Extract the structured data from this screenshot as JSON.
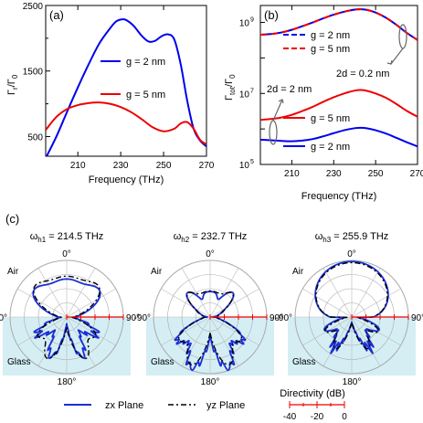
{
  "panels": {
    "a": "(a)",
    "b": "(b)",
    "c": "(c)"
  },
  "chart_data": [
    {
      "type": "line",
      "panel": "(a)",
      "xlabel": "Frequency (THz)",
      "ylabel": "Γr/Γ0",
      "ylabel_main": "Γ",
      "ylabel_sub1": "r",
      "ylabel_div": "/Γ",
      "ylabel_sub2": "0",
      "xlim": [
        195,
        270
      ],
      "ylim": [
        200,
        2500
      ],
      "xticks": [
        210,
        230,
        250,
        270
      ],
      "yticks": [
        500,
        1500,
        2500
      ],
      "ytick_labels": [
        "500",
        "1500",
        "2500"
      ],
      "xtick_labels": [
        "210",
        "230",
        "250",
        "270"
      ],
      "grid": false,
      "series": [
        {
          "name": "g = 2 nm",
          "color": "#0000ee",
          "x": [
            195,
            200,
            205,
            210,
            215,
            220,
            225,
            228,
            231,
            233,
            236,
            240,
            243,
            246,
            249,
            252,
            255,
            258,
            261,
            264,
            267,
            270
          ],
          "y": [
            170,
            500,
            880,
            1250,
            1600,
            1920,
            2150,
            2260,
            2290,
            2270,
            2190,
            2030,
            1950,
            1960,
            2030,
            2060,
            1980,
            1600,
            1050,
            620,
            440,
            350
          ]
        },
        {
          "name": "g = 5 nm",
          "color": "#ee0000",
          "x": [
            195,
            200,
            205,
            210,
            215,
            220,
            225,
            230,
            235,
            240,
            245,
            250,
            255,
            258,
            261,
            264,
            267,
            270
          ],
          "y": [
            600,
            800,
            920,
            980,
            1010,
            1020,
            1000,
            950,
            870,
            760,
            640,
            580,
            620,
            700,
            720,
            620,
            450,
            380
          ]
        }
      ]
    },
    {
      "type": "line",
      "panel": "(b)",
      "xlabel": "Frequency (THz)",
      "ylabel": "Γtot/Γ0",
      "ylabel_main": "Γ",
      "ylabel_sub1": "tot",
      "ylabel_div": "/Γ",
      "ylabel_sub2": "0",
      "yscale": "log",
      "xlim": [
        195,
        270
      ],
      "ylim": [
        100000,
        3000000000
      ],
      "xticks": [
        210,
        230,
        250,
        270
      ],
      "xtick_labels": [
        "210",
        "230",
        "250",
        "270"
      ],
      "yticks": [
        100000,
        10000000,
        1000000000
      ],
      "ytick_base": "10",
      "ytick_exponents": [
        "5",
        "7",
        "9"
      ],
      "grid": false,
      "annotations": [
        "2d = 0.2 nm",
        "2d = 2 nm"
      ],
      "series": [
        {
          "name": "g = 2 nm",
          "color": "#0000ee",
          "style": "solid",
          "x": [
            195,
            200,
            205,
            210,
            215,
            220,
            225,
            230,
            235,
            240,
            243,
            246,
            250,
            255,
            260,
            265,
            270
          ],
          "y": [
            450000000,
            470000000,
            520000000,
            620000000,
            780000000,
            1000000000,
            1300000000,
            1650000000,
            2000000000,
            2300000000,
            2350000000,
            2250000000,
            1900000000,
            1350000000,
            850000000,
            500000000,
            320000000
          ]
        },
        {
          "name": "g = 5 nm",
          "color": "#ee0000",
          "style": "dashed",
          "x": [
            195,
            200,
            205,
            210,
            215,
            220,
            225,
            230,
            235,
            240,
            243,
            246,
            250,
            255,
            260,
            265,
            270
          ],
          "y": [
            450000000,
            470000000,
            520000000,
            620000000,
            780000000,
            1000000000,
            1300000000,
            1650000000,
            2000000000,
            2300000000,
            2350000000,
            2250000000,
            1900000000,
            1350000000,
            850000000,
            500000000,
            320000000
          ]
        },
        {
          "name": "g = 2 nm",
          "color": "#0000ee",
          "style": "solid",
          "x": [
            195,
            200,
            205,
            210,
            215,
            220,
            225,
            230,
            235,
            240,
            243,
            246,
            250,
            255,
            260,
            265,
            270
          ],
          "y": [
            500000,
            480000,
            460000,
            450000,
            470000,
            520000,
            620000,
            760000,
            920000,
            1050000,
            1080000,
            1040000,
            920000,
            740000,
            560000,
            420000,
            320000
          ]
        },
        {
          "name": "g = 5 nm",
          "color": "#ee0000",
          "style": "solid",
          "x": [
            195,
            200,
            205,
            210,
            215,
            220,
            225,
            230,
            235,
            240,
            243,
            246,
            250,
            255,
            260,
            265,
            270
          ],
          "y": [
            1800000,
            1900000,
            2100000,
            2500000,
            3200000,
            4200000,
            5800000,
            7800000,
            10000000,
            12000000,
            12500000,
            11800000,
            10000000,
            7500000,
            5000000,
            3200000,
            2200000
          ]
        }
      ]
    },
    {
      "type": "polar",
      "panel": "(c)",
      "charts": [
        {
          "title_main": "ω",
          "title_sub": "h1",
          "title_rest": " = 214.5 THz",
          "shape": "h1"
        },
        {
          "title_main": "ω",
          "title_sub": "h2",
          "title_rest": " = 232.7 THz",
          "shape": "h2"
        },
        {
          "title_main": "ω",
          "title_sub": "h3",
          "title_rest": " = 255.9 THz",
          "shape": "h3"
        }
      ],
      "angle_labels": {
        "top": "0°",
        "left": "-90°",
        "right": "90°",
        "bottom": "180°"
      },
      "region_labels": {
        "upper": "Air",
        "lower": "Glass"
      },
      "glass_color": "#d4eef4",
      "legend": {
        "zx": "zx Plane",
        "yz": "yz Plane",
        "zx_color": "#1a2fd4",
        "yz_color": "#000000"
      },
      "directivity": {
        "title": "Directivity (dB)",
        "ticks": [
          "-40",
          "-20",
          "0"
        ],
        "color": "#ee0000"
      }
    }
  ],
  "legends": {
    "a": [
      "g = 2 nm",
      "g = 5 nm"
    ],
    "b_top": [
      "g = 2 nm",
      "g = 5 nm"
    ],
    "b_bottom": [
      "g = 5 nm",
      "g = 2 nm"
    ]
  }
}
